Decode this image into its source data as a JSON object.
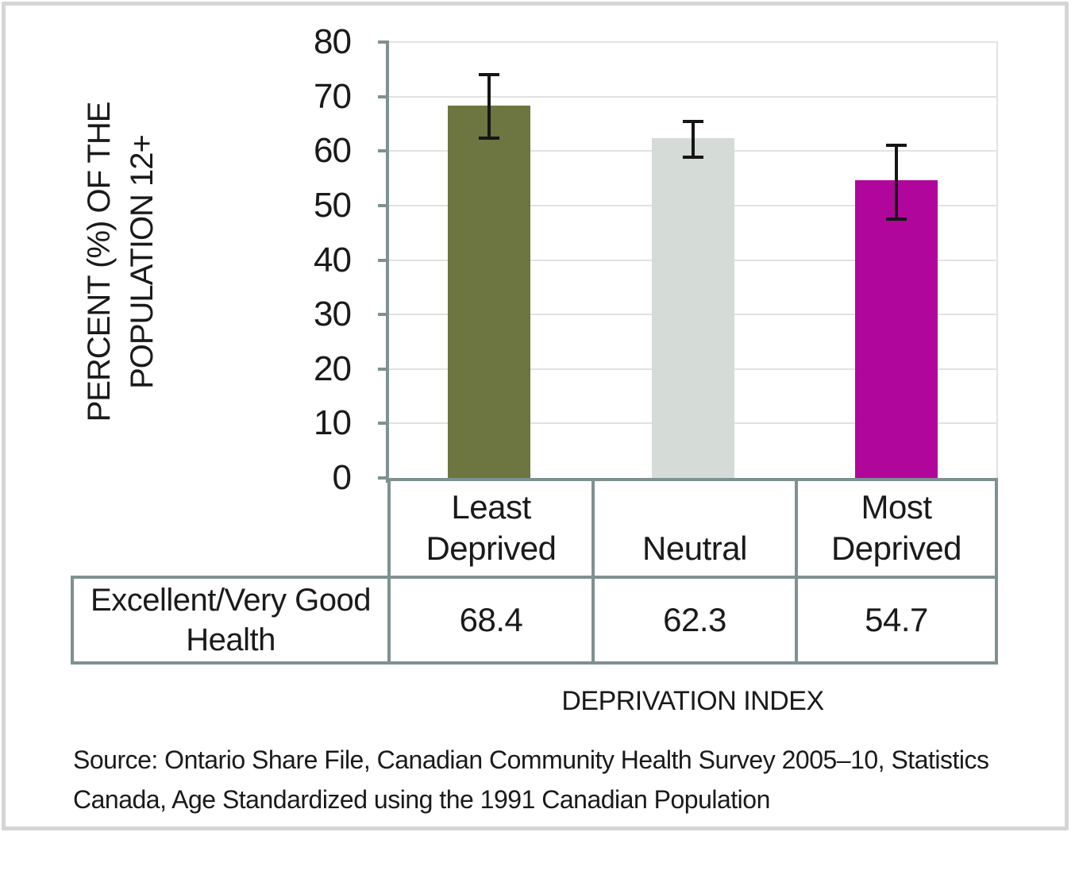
{
  "figure": {
    "panel_border_color": "#d5d5d5",
    "background": "#ffffff"
  },
  "chart_data": {
    "type": "bar",
    "title": "",
    "categories": [
      "Least Deprived",
      "Neutral",
      "Most Deprived"
    ],
    "series": [
      {
        "name": "Excellent/Very Good Health",
        "values": [
          68.4,
          62.3,
          54.7
        ]
      }
    ],
    "error_bars": [
      {
        "low": 62.3,
        "high": 74.0
      },
      {
        "low": 58.8,
        "high": 65.4
      },
      {
        "low": 47.5,
        "high": 61.1
      }
    ],
    "xlabel": "DEPRIVATION INDEX",
    "ylabel": "PERCENT (%) OF THE POPULATION 12+",
    "ylabel_lines": [
      "PERCENT (%) OF THE",
      "POPULATION 12+"
    ],
    "ylim": [
      0,
      80
    ],
    "yticks": [
      0,
      10,
      20,
      30,
      40,
      50,
      60,
      70,
      80
    ],
    "ytick_interval": 10,
    "grid": true,
    "legend_position": "none",
    "bar_colors": [
      "#6d7540",
      "#d5dbd7",
      "#b1069b"
    ],
    "axis_color": "#7f9190",
    "gridline_color": "#e2e2e2",
    "error_bar_color": "#161616"
  },
  "table": {
    "row_header": "Excellent/Very Good Health"
  },
  "source": {
    "lines": [
      "Source: Ontario Share File, Canadian Community Health Survey 2005–10, Statistics",
      "Canada, Age Standardized using the 1991 Canadian Population"
    ]
  }
}
